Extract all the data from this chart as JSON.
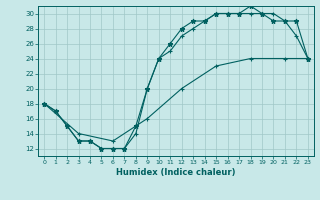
{
  "xlabel": "Humidex (Indice chaleur)",
  "xlim": [
    -0.5,
    23.5
  ],
  "ylim": [
    11,
    31
  ],
  "xticks": [
    0,
    1,
    2,
    3,
    4,
    5,
    6,
    7,
    8,
    9,
    10,
    11,
    12,
    13,
    14,
    15,
    16,
    17,
    18,
    19,
    20,
    21,
    22,
    23
  ],
  "yticks": [
    12,
    14,
    16,
    18,
    20,
    22,
    24,
    26,
    28,
    30
  ],
  "bg_color": "#c8e8e8",
  "line_color": "#006060",
  "grid_color": "#a0c8c8",
  "line1_x": [
    0,
    1,
    2,
    3,
    4,
    5,
    6,
    7,
    8,
    9,
    10,
    11,
    12,
    13,
    14,
    15,
    16,
    17,
    18,
    19,
    20,
    21,
    22,
    23
  ],
  "line1_y": [
    18,
    17,
    15,
    13,
    13,
    12,
    12,
    12,
    14,
    20,
    24,
    25,
    27,
    28,
    29,
    30,
    30,
    30,
    30,
    30,
    30,
    29,
    27,
    24
  ],
  "line2_x": [
    0,
    1,
    2,
    3,
    4,
    5,
    6,
    7,
    8,
    9,
    10,
    11,
    12,
    13,
    14,
    15,
    16,
    17,
    18,
    19,
    20,
    21,
    22,
    23
  ],
  "line2_y": [
    18,
    17,
    15,
    13,
    13,
    12,
    12,
    12,
    15,
    20,
    24,
    26,
    28,
    29,
    29,
    30,
    30,
    30,
    31,
    30,
    29,
    29,
    29,
    24
  ],
  "line3_x": [
    0,
    3,
    6,
    9,
    12,
    15,
    18,
    21,
    23
  ],
  "line3_y": [
    18,
    14,
    13,
    16,
    20,
    23,
    24,
    24,
    24
  ]
}
